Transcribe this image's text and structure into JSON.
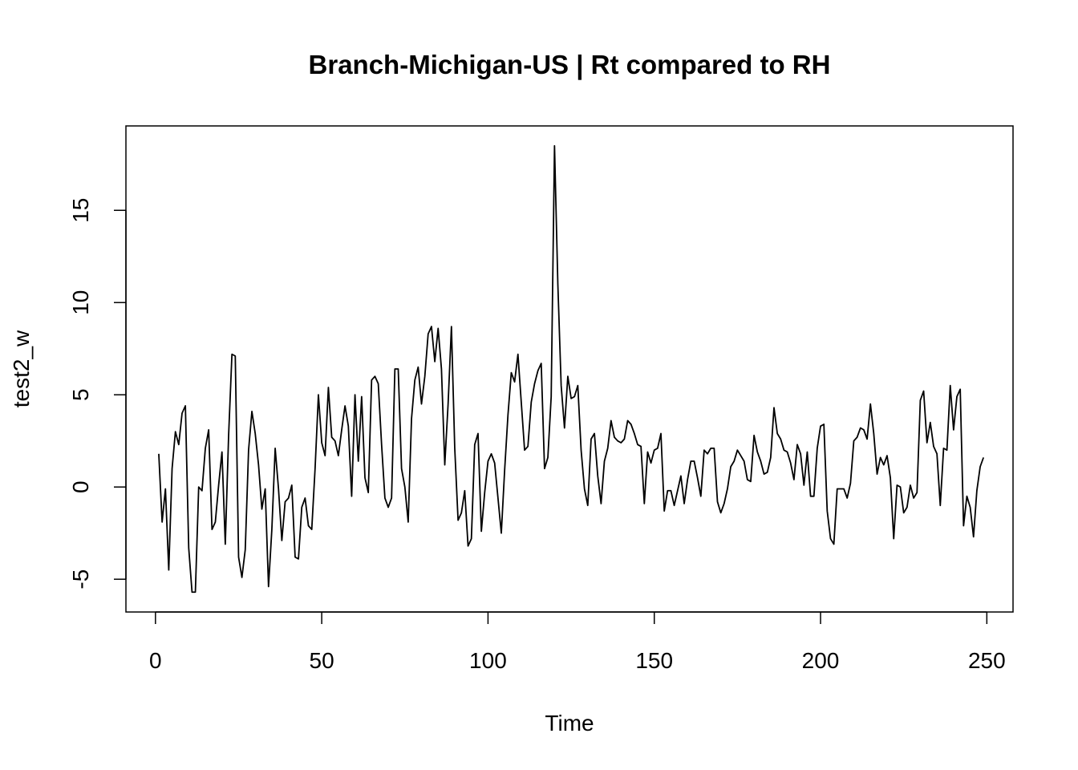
{
  "chart_data": {
    "type": "line",
    "title": "Branch-Michigan-US | Rt compared to RH",
    "xlabel": "Time",
    "ylabel": "test2_w",
    "xlim": [
      1,
      248
    ],
    "ylim": [
      -5.8,
      18.6
    ],
    "x_ticks": [
      0,
      50,
      100,
      150,
      200,
      250
    ],
    "y_ticks": [
      -5,
      0,
      5,
      10,
      15
    ],
    "grid": false,
    "legend": "none",
    "line_color": "#000000",
    "x_start": 1,
    "values": [
      1.8,
      -1.9,
      -0.1,
      -4.5,
      1.0,
      3.0,
      2.3,
      4.0,
      4.4,
      -3.3,
      -5.7,
      -5.7,
      0.0,
      -0.2,
      2.1,
      3.1,
      -2.3,
      -1.9,
      0.1,
      1.9,
      -3.1,
      2.8,
      7.2,
      7.1,
      -3.8,
      -4.9,
      -3.4,
      2.0,
      4.1,
      2.9,
      1.2,
      -1.2,
      -0.1,
      -5.4,
      -2.3,
      2.1,
      -0.1,
      -2.9,
      -0.8,
      -0.6,
      0.1,
      -3.8,
      -3.9,
      -1.1,
      -0.6,
      -2.1,
      -2.3,
      1.0,
      5.0,
      2.4,
      1.7,
      5.4,
      2.7,
      2.5,
      1.7,
      3.1,
      4.4,
      3.3,
      -0.5,
      5.0,
      1.4,
      4.9,
      0.5,
      -0.3,
      5.8,
      6.0,
      5.6,
      2.3,
      -0.6,
      -1.1,
      -0.6,
      6.4,
      6.4,
      1.0,
      0.0,
      -1.9,
      3.7,
      5.8,
      6.5,
      4.5,
      6.0,
      8.3,
      8.7,
      6.8,
      8.6,
      6.4,
      1.2,
      4.5,
      8.7,
      2.1,
      -1.8,
      -1.4,
      -0.2,
      -3.2,
      -2.8,
      2.3,
      2.9,
      -2.4,
      -0.3,
      1.4,
      1.8,
      1.3,
      -0.6,
      -2.5,
      0.9,
      3.9,
      6.2,
      5.7,
      7.2,
      4.6,
      2.0,
      2.2,
      4.6,
      5.6,
      6.3,
      6.7,
      1.0,
      1.6,
      4.9,
      18.5,
      11.0,
      5.5,
      3.2,
      6.0,
      4.8,
      4.9,
      5.5,
      2.0,
      -0.1,
      -1.0,
      2.6,
      2.9,
      0.6,
      -0.9,
      1.4,
      2.1,
      3.6,
      2.7,
      2.5,
      2.4,
      2.6,
      3.6,
      3.4,
      2.9,
      2.3,
      2.2,
      -0.9,
      1.9,
      1.3,
      2.0,
      2.1,
      2.9,
      -1.3,
      -0.2,
      -0.2,
      -1.0,
      -0.2,
      0.6,
      -0.9,
      0.4,
      1.4,
      1.4,
      0.5,
      -0.5,
      2.0,
      1.8,
      2.1,
      2.1,
      -0.8,
      -1.4,
      -0.9,
      -0.1,
      1.1,
      1.4,
      2.0,
      1.7,
      1.4,
      0.4,
      0.3,
      2.8,
      1.9,
      1.4,
      0.7,
      0.8,
      1.6,
      4.3,
      2.9,
      2.6,
      2.0,
      1.9,
      1.3,
      0.4,
      2.3,
      1.8,
      0.1,
      1.9,
      -0.5,
      -0.5,
      2.1,
      3.3,
      3.4,
      -1.3,
      -2.8,
      -3.1,
      -0.1,
      -0.1,
      -0.1,
      -0.6,
      0.2,
      2.5,
      2.7,
      3.2,
      3.1,
      2.6,
      4.5,
      2.9,
      0.7,
      1.6,
      1.2,
      1.7,
      0.5,
      -2.8,
      0.1,
      0.0,
      -1.4,
      -1.1,
      0.1,
      -0.6,
      -0.3,
      4.7,
      5.2,
      2.4,
      3.5,
      2.2,
      1.8,
      -1.0,
      2.1,
      2.0,
      5.5,
      3.1,
      4.9,
      5.3,
      -2.1,
      -0.5,
      -1.1,
      -2.7,
      -0.2,
      1.1,
      1.6
    ]
  }
}
